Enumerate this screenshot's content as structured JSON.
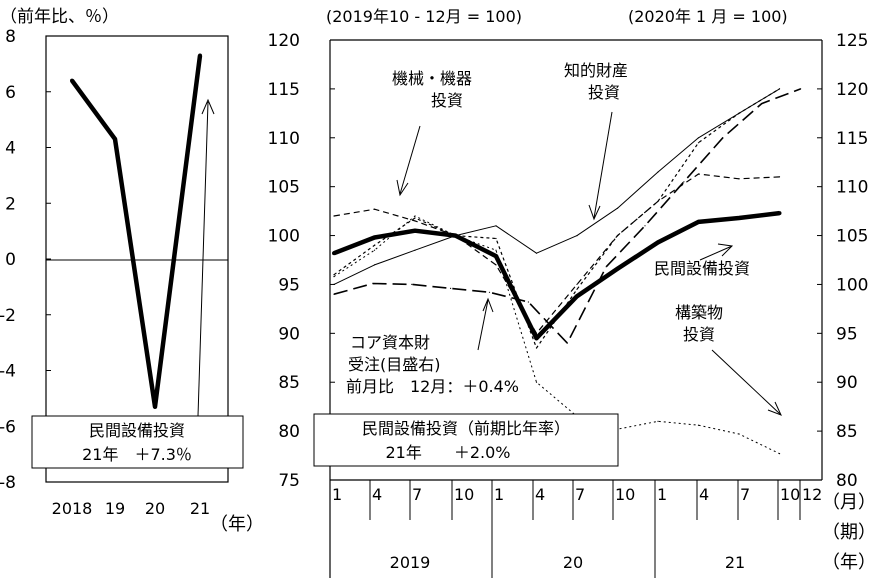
{
  "chart_data": [
    {
      "type": "line",
      "unit_label": "（前年比、％）",
      "x": [
        "2018",
        "19",
        "20",
        "21"
      ],
      "x_unit": "（年）",
      "ylim": [
        -8,
        8
      ],
      "yticks": [
        "8",
        "6",
        "4",
        "2",
        "0",
        "-2",
        "-4",
        "-6",
        "-8"
      ],
      "series": [
        {
          "name": "民間設備投資",
          "values": [
            6.4,
            4.3,
            -5.3,
            7.3
          ]
        }
      ],
      "annotation": {
        "line1": "民間設備投資",
        "line2": "21年　＋7.3％"
      }
    },
    {
      "type": "line",
      "left_axis_label": "(2019年10 - 12月 = 100)",
      "right_axis_label": "(2020年 1 月 = 100)",
      "left_ylim": [
        75,
        120
      ],
      "right_ylim": [
        80,
        125
      ],
      "left_yticks": [
        "120",
        "115",
        "110",
        "105",
        "100",
        "95",
        "90",
        "85",
        "80",
        "75"
      ],
      "right_yticks": [
        "125",
        "120",
        "115",
        "110",
        "105",
        "100",
        "95",
        "90",
        "85",
        "80"
      ],
      "quarter_labels": [
        "1",
        "4",
        "7",
        "10",
        "1",
        "4",
        "7",
        "10",
        "1",
        "4",
        "7",
        "10",
        "12"
      ],
      "year_labels": [
        "2019",
        "20",
        "21"
      ],
      "x_unit_labels": [
        "（月）",
        "（期）",
        "（年）"
      ],
      "series": [
        {
          "name": "民間設備投資",
          "axis": "left",
          "x": [
            1,
            2,
            3,
            4,
            5,
            6,
            7,
            8,
            9,
            10,
            11,
            12
          ],
          "values": [
            98.2,
            99.8,
            100.5,
            100.0,
            97.9,
            89.5,
            93.8,
            96.6,
            99.3,
            101.4,
            101.8,
            102.3
          ]
        },
        {
          "name": "機械・機器投資",
          "axis": "left",
          "x": [
            1,
            2,
            3,
            4,
            5,
            6,
            7,
            8,
            9,
            10,
            11,
            12
          ],
          "values": [
            96.0,
            99.0,
            101.8,
            100.0,
            99.7,
            88.5,
            94.5,
            100.0,
            103.5,
            109.5,
            112.5,
            115.0
          ]
        },
        {
          "name": "知的財産投資",
          "axis": "left",
          "x": [
            1,
            2,
            3,
            4,
            5,
            6,
            7,
            8,
            9,
            10,
            11,
            12
          ],
          "values": [
            95.0,
            97.0,
            98.5,
            100.0,
            101.0,
            98.2,
            100.0,
            102.8,
            106.5,
            110.0,
            112.5,
            115.0
          ]
        },
        {
          "name": "構築物投資",
          "axis": "left",
          "x": [
            1,
            2,
            3,
            4,
            5,
            6,
            7,
            8,
            9,
            10,
            11,
            12
          ],
          "values": [
            95.8,
            98.5,
            102.0,
            100.0,
            98.5,
            85.0,
            81.5,
            80.2,
            81.0,
            80.6,
            79.7,
            77.7
          ]
        },
        {
          "name": "民間設備投資",
          "axis": "left",
          "style": "dash",
          "x": [
            1,
            2,
            3,
            4,
            5,
            6,
            7,
            8,
            9,
            10,
            11,
            12
          ],
          "values": [
            102.0,
            102.7,
            101.5,
            100.0,
            97.0,
            90.0,
            95.0,
            100.0,
            103.5,
            106.3,
            105.8,
            106.0
          ]
        },
        {
          "name": "コア資本財受注",
          "axis": "right",
          "x": [
            1,
            2,
            3,
            4,
            5,
            6,
            7,
            8,
            9,
            10,
            11,
            12,
            13
          ],
          "values": [
            99.0,
            100.1,
            100.0,
            99.6,
            99.2,
            98.2,
            94.0,
            101.8,
            106.0,
            110.5,
            115.0,
            118.5,
            120.0
          ]
        }
      ],
      "annotations": [
        {
          "id": "machinery",
          "lines": [
            "機械・機器",
            "投資"
          ]
        },
        {
          "id": "ip",
          "lines": [
            "知的財産",
            "投資"
          ]
        },
        {
          "id": "private",
          "lines": [
            "民間設備投資"
          ]
        },
        {
          "id": "structures",
          "lines": [
            "構築物",
            "投資"
          ]
        },
        {
          "id": "core",
          "lines": [
            "コア資本財",
            "受注(目盛右)",
            "前月比　12月：＋0.4%"
          ]
        }
      ],
      "box": {
        "line1": "民間設備投資（前期比年率）",
        "line2": "21年　　＋2.0%"
      }
    }
  ]
}
